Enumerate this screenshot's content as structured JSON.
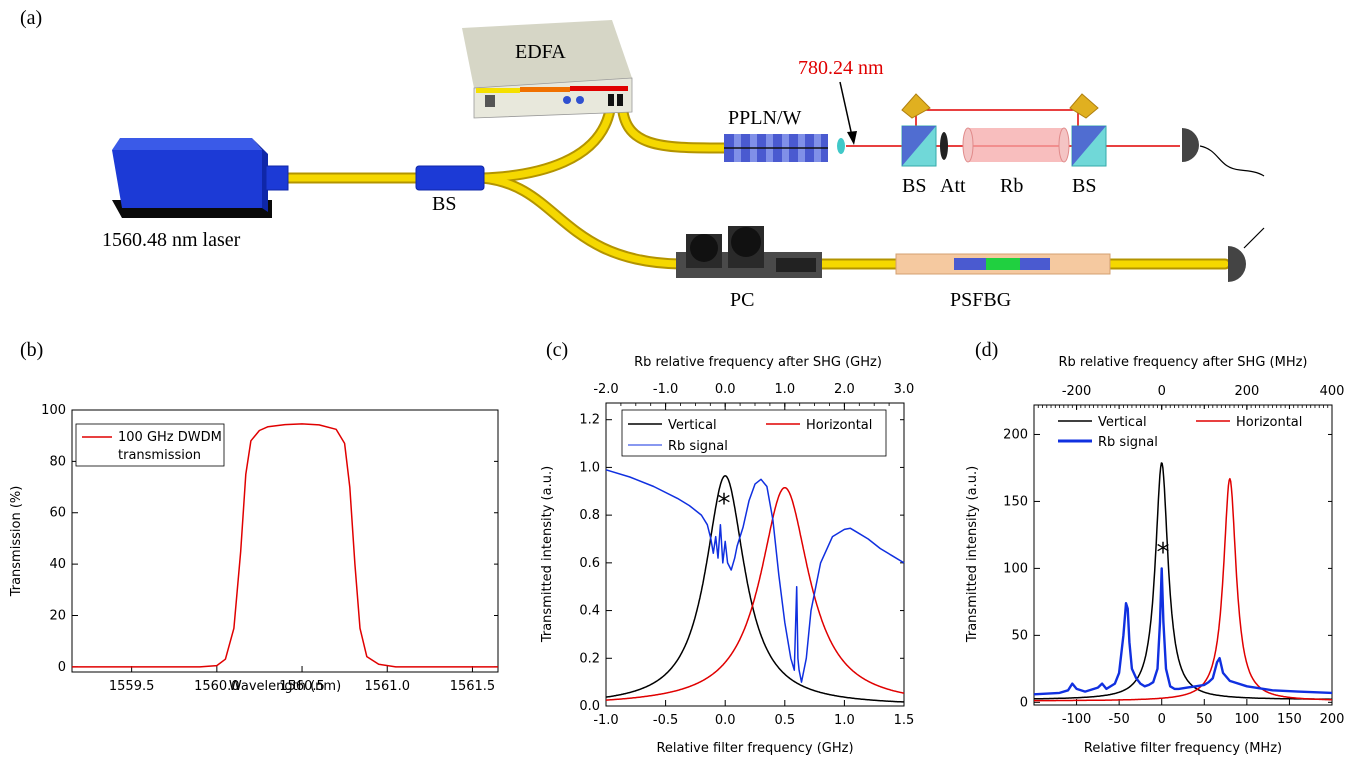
{
  "panel_labels": {
    "a": "(a)",
    "b": "(b)",
    "c": "(c)",
    "d": "(d)"
  },
  "setup": {
    "edfa": "EDFA",
    "wavelength_label": "780.24 nm",
    "ppln": "PPLN/W",
    "laser": "1560.48 nm laser",
    "bs_fiber": "BS",
    "bs1": "BS",
    "att": "Att",
    "rb": "Rb",
    "bs2": "BS",
    "pc": "PC",
    "psfbg": "PSFBG",
    "colors": {
      "fiber": "#f5d800",
      "laser_body": "#1c3ad6",
      "beam": "#e00000",
      "rb_cell": "#f6a8a8",
      "grating": "#4a5ad0"
    }
  },
  "chart_data": [
    {
      "id": "b",
      "type": "line",
      "xlabel": "Wavelength (nm)",
      "ylabel": "Transmission (%)",
      "xlim": [
        1559.15,
        1561.65
      ],
      "ylim": [
        -2,
        100
      ],
      "xticks": [
        "1559.5",
        "1560.0",
        "1560.5",
        "1561.0",
        "1561.5"
      ],
      "yticks": [
        "0",
        "20",
        "40",
        "60",
        "80",
        "100"
      ],
      "legend": [
        "100 GHz DWDM",
        "transmission"
      ],
      "legend_position": "top-left",
      "series": [
        {
          "name": "100 GHz DWDM transmission",
          "color": "#e00000",
          "x": [
            1559.15,
            1559.9,
            1560.0,
            1560.05,
            1560.1,
            1560.14,
            1560.17,
            1560.2,
            1560.25,
            1560.3,
            1560.4,
            1560.5,
            1560.6,
            1560.7,
            1560.75,
            1560.78,
            1560.81,
            1560.84,
            1560.88,
            1560.95,
            1561.05,
            1561.65
          ],
          "y": [
            0,
            0,
            0.5,
            3,
            15,
            45,
            75,
            88,
            92,
            93.5,
            94.3,
            94.6,
            94.2,
            92.5,
            87,
            70,
            40,
            15,
            4,
            1,
            0,
            0
          ]
        }
      ]
    },
    {
      "id": "c",
      "type": "line",
      "xlabel": "Relative filter frequency (GHz)",
      "ylabel": "Transmitted intensity (a.u.)",
      "top_xlabel": "Rb relative frequency after SHG (GHz)",
      "xlim": [
        -1.0,
        1.5
      ],
      "ylim": [
        0.0,
        1.27
      ],
      "xticks": [
        "-1.0",
        "-0.5",
        "0.0",
        "0.5",
        "1.0",
        "1.5"
      ],
      "yticks": [
        "0.0",
        "0.2",
        "0.4",
        "0.6",
        "0.8",
        "1.0",
        "1.2"
      ],
      "top_xticks": [
        "-2.0",
        "-1.0",
        "0.0",
        "1.0",
        "2.0",
        "3.0"
      ],
      "top_xlim": [
        -2.0,
        3.0
      ],
      "legend": [
        "Vertical",
        "Horizontal",
        "Rb signal"
      ],
      "legend_position": "top",
      "annotation": "*",
      "series": [
        {
          "name": "Vertical",
          "color": "#000000",
          "kind": "lorentz",
          "center": 0.0,
          "peak": 0.965,
          "hwhm": 0.2
        },
        {
          "name": "Horizontal",
          "color": "#e00000",
          "kind": "lorentz",
          "center": 0.5,
          "peak": 0.915,
          "hwhm": 0.25
        },
        {
          "name": "Rb signal",
          "color": "#1030e0",
          "x": [
            -1.0,
            -0.8,
            -0.6,
            -0.4,
            -0.3,
            -0.2,
            -0.15,
            -0.12,
            -0.1,
            -0.08,
            -0.06,
            -0.04,
            -0.02,
            0.0,
            0.02,
            0.05,
            0.08,
            0.1,
            0.15,
            0.2,
            0.25,
            0.3,
            0.35,
            0.4,
            0.45,
            0.5,
            0.55,
            0.58,
            0.6,
            0.61,
            0.62,
            0.64,
            0.68,
            0.72,
            0.8,
            0.9,
            1.0,
            1.05,
            1.1,
            1.2,
            1.3,
            1.4,
            1.5
          ],
          "y": [
            0.99,
            0.96,
            0.92,
            0.87,
            0.84,
            0.8,
            0.76,
            0.7,
            0.64,
            0.71,
            0.62,
            0.76,
            0.6,
            0.69,
            0.6,
            0.57,
            0.62,
            0.67,
            0.75,
            0.86,
            0.93,
            0.95,
            0.92,
            0.78,
            0.55,
            0.35,
            0.2,
            0.15,
            0.5,
            0.2,
            0.15,
            0.1,
            0.2,
            0.4,
            0.6,
            0.71,
            0.74,
            0.745,
            0.73,
            0.7,
            0.66,
            0.63,
            0.6
          ]
        }
      ]
    },
    {
      "id": "d",
      "type": "line",
      "xlabel": "Relative filter frequency (MHz)",
      "ylabel": "Transmitted intensity (a.u.)",
      "top_xlabel": "Rb relative frequency after SHG (MHz)",
      "xlim": [
        -150,
        200
      ],
      "ylim": [
        -2,
        222
      ],
      "xticks": [
        "-100",
        "-50",
        "0",
        "50",
        "100",
        "150",
        "200"
      ],
      "yticks": [
        "0",
        "50",
        "100",
        "150",
        "200"
      ],
      "top_xticks": [
        "-200",
        "0",
        "200",
        "400"
      ],
      "top_xlim": [
        -300,
        400
      ],
      "legend": [
        "Vertical",
        "Horizontal",
        "Rb signal"
      ],
      "legend_position": "top",
      "annotation": "*",
      "series": [
        {
          "name": "Vertical",
          "color": "#000000",
          "kind": "lorentz",
          "center": 0,
          "peak": 177,
          "hwhm": 9,
          "offset": 2
        },
        {
          "name": "Horizontal",
          "color": "#e00000",
          "kind": "lorentz",
          "center": 80,
          "peak": 166,
          "hwhm": 9,
          "offset": 1
        },
        {
          "name": "Rb signal",
          "color": "#1030e0",
          "x": [
            -150,
            -120,
            -110,
            -105,
            -100,
            -90,
            -75,
            -70,
            -65,
            -55,
            -50,
            -45,
            -42,
            -40,
            -38,
            -35,
            -30,
            -25,
            -20,
            -15,
            -10,
            -5,
            -2,
            0,
            2,
            5,
            10,
            15,
            20,
            30,
            40,
            50,
            55,
            60,
            65,
            68,
            72,
            80,
            100,
            130,
            160,
            200
          ],
          "y": [
            6,
            7,
            9,
            14,
            10,
            8,
            11,
            14,
            10,
            14,
            22,
            50,
            74,
            70,
            45,
            25,
            18,
            14,
            12,
            13,
            15,
            25,
            60,
            100,
            60,
            25,
            12,
            10,
            10,
            11,
            12,
            13,
            15,
            18,
            30,
            33,
            22,
            16,
            12,
            9,
            8,
            7
          ]
        }
      ]
    }
  ]
}
